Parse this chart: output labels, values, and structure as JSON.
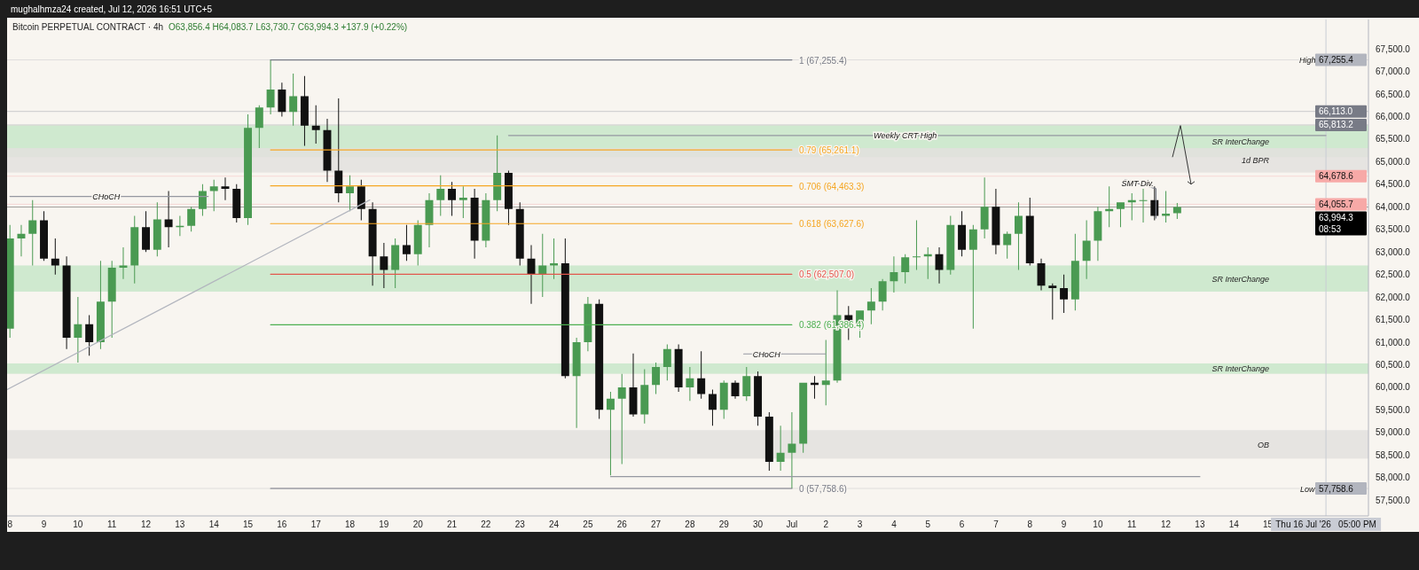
{
  "chart_data": {
    "type": "candlestick",
    "title": "Bitcoin PERPETUAL CONTRACT · 4h",
    "subtitle": "O63,856.4 H64,083.7 L63,730.7 C63,994.3 +137.9 (+0.22%)",
    "annotations": [
      "mughalhmza24 created, Jul 12, 2026 16:51 UTC+5",
      {
        "text": "CHoCH",
        "x": "2026-06-10T20:00",
        "y": 64230
      },
      {
        "text": "CHoCH",
        "x": "2026-06-30T06:00",
        "y": 60740
      },
      {
        "text": "Weekly CRT High",
        "x": "2026-07-04T08:00",
        "y": 65580
      },
      {
        "text": "SMT Div.",
        "x": "2026-07-11T04:00",
        "y": 64520
      },
      {
        "text": "High",
        "x": "2026-07-16T04:00",
        "y": 67255.4
      },
      {
        "text": "Low",
        "x": "2026-07-16T04:00",
        "y": 57758.6
      }
    ],
    "xlim": [
      "2026-06-07T22:00",
      "2026-07-17T23:00"
    ],
    "ylim": [
      57150,
      68150
    ],
    "xticks": [
      {
        "value": "2026-06-08T00:00",
        "label": "8"
      },
      {
        "value": "2026-06-09T00:00",
        "label": "9"
      },
      {
        "value": "2026-06-10T00:00",
        "label": "10"
      },
      {
        "value": "2026-06-11T00:00",
        "label": "11"
      },
      {
        "value": "2026-06-12T00:00",
        "label": "12"
      },
      {
        "value": "2026-06-13T00:00",
        "label": "13"
      },
      {
        "value": "2026-06-14T00:00",
        "label": "14"
      },
      {
        "value": "2026-06-15T00:00",
        "label": "15"
      },
      {
        "value": "2026-06-16T00:00",
        "label": "16"
      },
      {
        "value": "2026-06-17T00:00",
        "label": "17"
      },
      {
        "value": "2026-06-18T00:00",
        "label": "18"
      },
      {
        "value": "2026-06-19T00:00",
        "label": "19"
      },
      {
        "value": "2026-06-20T00:00",
        "label": "20"
      },
      {
        "value": "2026-06-21T00:00",
        "label": "21"
      },
      {
        "value": "2026-06-22T00:00",
        "label": "22"
      },
      {
        "value": "2026-06-23T00:00",
        "label": "23"
      },
      {
        "value": "2026-06-24T00:00",
        "label": "24"
      },
      {
        "value": "2026-06-25T00:00",
        "label": "25"
      },
      {
        "value": "2026-06-26T00:00",
        "label": "26"
      },
      {
        "value": "2026-06-27T00:00",
        "label": "27"
      },
      {
        "value": "2026-06-28T00:00",
        "label": "28"
      },
      {
        "value": "2026-06-29T00:00",
        "label": "29"
      },
      {
        "value": "2026-06-30T00:00",
        "label": "30"
      },
      {
        "value": "2026-07-01T00:00",
        "label": "Jul"
      },
      {
        "value": "2026-07-02T00:00",
        "label": "2"
      },
      {
        "value": "2026-07-03T00:00",
        "label": "3"
      },
      {
        "value": "2026-07-04T00:00",
        "label": "4"
      },
      {
        "value": "2026-07-05T00:00",
        "label": "5"
      },
      {
        "value": "2026-07-06T00:00",
        "label": "6"
      },
      {
        "value": "2026-07-07T00:00",
        "label": "7"
      },
      {
        "value": "2026-07-08T00:00",
        "label": "8"
      },
      {
        "value": "2026-07-09T00:00",
        "label": "9"
      },
      {
        "value": "2026-07-10T00:00",
        "label": "10"
      },
      {
        "value": "2026-07-11T00:00",
        "label": "11"
      },
      {
        "value": "2026-07-12T00:00",
        "label": "12"
      },
      {
        "value": "2026-07-13T00:00",
        "label": "13"
      },
      {
        "value": "2026-07-14T00:00",
        "label": "14"
      },
      {
        "value": "2026-07-15T00:00",
        "label": "15"
      }
    ],
    "yticks": [
      {
        "value": 57500,
        "label": "57,500.0"
      },
      {
        "value": 58000,
        "label": "58,000.0"
      },
      {
        "value": 58500,
        "label": "58,500.0"
      },
      {
        "value": 59000,
        "label": "59,000.0"
      },
      {
        "value": 59500,
        "label": "59,500.0"
      },
      {
        "value": 60000,
        "label": "60,000.0"
      },
      {
        "value": 60500,
        "label": "60,500.0"
      },
      {
        "value": 61000,
        "label": "61,000.0"
      },
      {
        "value": 61500,
        "label": "61,500.0"
      },
      {
        "value": 62000,
        "label": "62,000.0"
      },
      {
        "value": 62500,
        "label": "62,500.0"
      },
      {
        "value": 63000,
        "label": "63,000.0"
      },
      {
        "value": 63500,
        "label": "63,500.0"
      },
      {
        "value": 64000,
        "label": "64,000.0"
      },
      {
        "value": 64500,
        "label": "64,500.0"
      },
      {
        "value": 65000,
        "label": "65,000.0"
      },
      {
        "value": 65500,
        "label": "65,500.0"
      },
      {
        "value": 66000,
        "label": "66,000.0"
      },
      {
        "value": 66500,
        "label": "66,500.0"
      },
      {
        "value": 67000,
        "label": "67,000.0"
      },
      {
        "value": 67500,
        "label": "67,500.0"
      }
    ],
    "bands": [
      {
        "axis": "y",
        "from": 65100,
        "to": 65800,
        "label": "SR InterChange",
        "color": "#c8e6c9"
      },
      {
        "axis": "y",
        "from": 64760,
        "to": 65300,
        "label": "1d BPR",
        "color": "#e3e1de"
      },
      {
        "axis": "y",
        "from": 62120,
        "to": 62700,
        "label": "SR InterChange",
        "color": "#c8e6c9"
      },
      {
        "axis": "y",
        "from": 60300,
        "to": 60530,
        "label": "SR InterChange",
        "color": "#c8e6c9"
      },
      {
        "axis": "y",
        "from": 58420,
        "to": 59050,
        "label": "OB",
        "color": "#e3e1de"
      }
    ],
    "ref_lines": [
      {
        "axis": "y",
        "value": 67255.4,
        "label": "67,255.4",
        "color": "#b2b5be"
      },
      {
        "axis": "y",
        "value": 66113.0,
        "label": "66,113.0",
        "color": "#787b86"
      },
      {
        "axis": "y",
        "value": 65813.2,
        "label": "65,813.2",
        "color": "#787b86"
      },
      {
        "axis": "y",
        "value": 64678.6,
        "label": "64,678.6",
        "color": "#f7a9a7"
      },
      {
        "axis": "y",
        "value": 64055.7,
        "label": "64,055.7",
        "color": "#f7a9a7"
      },
      {
        "axis": "y",
        "value": 63994.3,
        "label": "63,994.3 08:53",
        "color": "#000000"
      },
      {
        "axis": "y",
        "value": 57758.6,
        "label": "57,758.6",
        "color": "#b2b5be"
      },
      {
        "axis": "x",
        "value": "2026-07-16T17:00",
        "label": "Thu 16 Jul '26   05:00 PM",
        "color": "#c9ccd4"
      }
    ],
    "series": [
      {
        "type": "line",
        "name": "1 (67,255.4)",
        "color": "#787b86",
        "x": [
          "2026-06-15T16:00",
          "2026-07-01T00:00"
        ],
        "values": [
          67255.4,
          67255.4
        ]
      },
      {
        "type": "line",
        "name": "0.79 (65,261.1)",
        "color": "#f5a623",
        "x": [
          "2026-06-15T16:00",
          "2026-07-01T00:00"
        ],
        "values": [
          65261.1,
          65261.1
        ]
      },
      {
        "type": "line",
        "name": "0.706 (64,463.3)",
        "color": "#f5a623",
        "x": [
          "2026-06-15T16:00",
          "2026-07-01T00:00"
        ],
        "values": [
          64463.3,
          64463.3
        ]
      },
      {
        "type": "line",
        "name": "0.618 (63,627.6)",
        "color": "#f5a623",
        "x": [
          "2026-06-15T16:00",
          "2026-07-01T00:00"
        ],
        "values": [
          63627.6,
          63627.6
        ]
      },
      {
        "type": "line",
        "name": "0.5 (62,507.0)",
        "color": "#e2574c",
        "x": [
          "2026-06-15T16:00",
          "2026-07-01T00:00"
        ],
        "values": [
          62507.0,
          62507.0
        ]
      },
      {
        "type": "line",
        "name": "0.382 (61,386.4)",
        "color": "#4caf50",
        "x": [
          "2026-06-15T16:00",
          "2026-07-01T00:00"
        ],
        "values": [
          61386.4,
          61386.4
        ]
      },
      {
        "type": "line",
        "name": "0 (57,758.6)",
        "color": "#787b86",
        "x": [
          "2026-06-15T16:00",
          "2026-07-01T00:00"
        ],
        "values": [
          57758.6,
          57758.6
        ]
      },
      {
        "type": "line",
        "color": "#9598a1",
        "x": [
          "2026-06-22T16:00",
          "2026-07-16T17:00"
        ],
        "values": [
          65580,
          65580
        ]
      },
      {
        "type": "line",
        "color": "#9598a1",
        "x": [
          "2026-06-08T00:00",
          "2026-06-13T20:00"
        ],
        "values": [
          64230,
          64230
        ]
      },
      {
        "type": "line",
        "color": "#9598a1",
        "x": [
          "2026-06-29T14:00",
          "2026-07-02T00:00"
        ],
        "values": [
          60740,
          60740
        ]
      },
      {
        "type": "line",
        "color": "#b2b5be",
        "x": [
          "2026-06-07T22:00",
          "2026-06-18T14:00"
        ],
        "values": [
          59950,
          64150
        ]
      },
      {
        "type": "line",
        "color": "#9598a1",
        "x": [
          "2026-06-25T16:00",
          "2026-07-13T00:00"
        ],
        "values": [
          58020,
          58020
        ]
      },
      {
        "type": "line",
        "color": "#787b86",
        "x": [
          "2026-07-10T19:00",
          "2026-07-11T17:00",
          "2026-07-11T17:00"
        ],
        "values": [
          64600,
          64400,
          63750
        ]
      },
      {
        "x": [
          "2026-06-08T00:00",
          "2026-06-08T08:00",
          "2026-06-08T16:00",
          "2026-06-09T00:00",
          "2026-06-09T08:00",
          "2026-06-09T16:00",
          "2026-06-10T00:00",
          "2026-06-10T08:00",
          "2026-06-10T16:00",
          "2026-06-11T00:00",
          "2026-06-11T08:00",
          "2026-06-11T16:00",
          "2026-06-12T00:00",
          "2026-06-12T08:00",
          "2026-06-12T16:00",
          "2026-06-13T00:00",
          "2026-06-13T08:00",
          "2026-06-13T16:00",
          "2026-06-14T00:00",
          "2026-06-14T08:00",
          "2026-06-14T16:00",
          "2026-06-15T00:00",
          "2026-06-15T08:00",
          "2026-06-15T16:00",
          "2026-06-16T00:00",
          "2026-06-16T08:00",
          "2026-06-16T16:00",
          "2026-06-17T00:00",
          "2026-06-17T08:00",
          "2026-06-17T16:00",
          "2026-06-18T00:00",
          "2026-06-18T08:00",
          "2026-06-18T16:00",
          "2026-06-19T00:00",
          "2026-06-19T08:00",
          "2026-06-19T16:00",
          "2026-06-20T00:00",
          "2026-06-20T08:00",
          "2026-06-20T16:00",
          "2026-06-21T00:00",
          "2026-06-21T08:00",
          "2026-06-21T16:00",
          "2026-06-22T00:00",
          "2026-06-22T08:00",
          "2026-06-22T16:00",
          "2026-06-23T00:00",
          "2026-06-23T08:00",
          "2026-06-23T16:00",
          "2026-06-24T00:00",
          "2026-06-24T08:00",
          "2026-06-24T16:00",
          "2026-06-25T00:00",
          "2026-06-25T08:00",
          "2026-06-25T16:00",
          "2026-06-26T00:00",
          "2026-06-26T08:00",
          "2026-06-26T16:00",
          "2026-06-27T00:00",
          "2026-06-27T08:00",
          "2026-06-27T16:00",
          "2026-06-28T00:00",
          "2026-06-28T08:00",
          "2026-06-28T16:00",
          "2026-06-29T00:00",
          "2026-06-29T08:00",
          "2026-06-29T16:00",
          "2026-06-30T00:00",
          "2026-06-30T08:00",
          "2026-06-30T16:00",
          "2026-07-01T00:00",
          "2026-07-01T08:00",
          "2026-07-01T16:00",
          "2026-07-02T00:00",
          "2026-07-02T08:00",
          "2026-07-02T16:00",
          "2026-07-03T00:00",
          "2026-07-03T08:00",
          "2026-07-03T16:00",
          "2026-07-04T00:00",
          "2026-07-04T08:00",
          "2026-07-04T16:00",
          "2026-07-05T00:00",
          "2026-07-05T08:00",
          "2026-07-05T16:00",
          "2026-07-06T00:00",
          "2026-07-06T08:00",
          "2026-07-06T16:00",
          "2026-07-07T00:00",
          "2026-07-07T08:00",
          "2026-07-07T16:00",
          "2026-07-08T00:00",
          "2026-07-08T08:00",
          "2026-07-08T16:00",
          "2026-07-09T00:00",
          "2026-07-09T08:00",
          "2026-07-09T16:00",
          "2026-07-10T00:00",
          "2026-07-10T08:00",
          "2026-07-10T16:00",
          "2026-07-11T00:00",
          "2026-07-11T08:00",
          "2026-07-11T16:00",
          "2026-07-12T00:00",
          "2026-07-12T08:00"
        ],
        "ohlc": [
          [
            61300,
            63600,
            61100,
            63300
          ],
          [
            63300,
            63600,
            62900,
            63400
          ],
          [
            63400,
            64150,
            62700,
            63700
          ],
          [
            63700,
            63900,
            62800,
            62850
          ],
          [
            62850,
            63300,
            62500,
            62700
          ],
          [
            62700,
            62900,
            60850,
            61100
          ],
          [
            61100,
            62000,
            60550,
            61400
          ],
          [
            61400,
            61600,
            60700,
            61000
          ],
          [
            61000,
            62800,
            60850,
            61900
          ],
          [
            61900,
            62800,
            61100,
            62650
          ],
          [
            62650,
            63100,
            62400,
            62700
          ],
          [
            62700,
            63800,
            62300,
            63550
          ],
          [
            63550,
            63900,
            63000,
            63050
          ],
          [
            63050,
            64100,
            62900,
            63720
          ],
          [
            63720,
            64350,
            63100,
            63550
          ],
          [
            63550,
            63800,
            63350,
            63580
          ],
          [
            63580,
            64000,
            63450,
            63950
          ],
          [
            63950,
            64500,
            63800,
            64350
          ],
          [
            64350,
            64600,
            63900,
            64450
          ],
          [
            64450,
            64650,
            64150,
            64400
          ],
          [
            64400,
            64500,
            63650,
            63750
          ],
          [
            63750,
            66050,
            63600,
            65750
          ],
          [
            65750,
            66250,
            65300,
            66200
          ],
          [
            66200,
            67255.4,
            66050,
            66600
          ],
          [
            66600,
            66750,
            66000,
            66100
          ],
          [
            66100,
            66950,
            65800,
            66450
          ],
          [
            66450,
            66900,
            65350,
            65800
          ],
          [
            65800,
            66250,
            65400,
            65700
          ],
          [
            65700,
            65950,
            64550,
            64800
          ],
          [
            64800,
            66400,
            64100,
            64300
          ],
          [
            64300,
            64700,
            63900,
            64450
          ],
          [
            64450,
            64600,
            63700,
            63950
          ],
          [
            63950,
            64100,
            62250,
            62900
          ],
          [
            62900,
            63200,
            62200,
            62600
          ],
          [
            62600,
            63300,
            62200,
            63150
          ],
          [
            63150,
            63600,
            62800,
            62950
          ],
          [
            62950,
            63700,
            62700,
            63600
          ],
          [
            63600,
            64300,
            63100,
            64150
          ],
          [
            64150,
            64700,
            63800,
            64400
          ],
          [
            64400,
            64550,
            63800,
            64150
          ],
          [
            64150,
            64450,
            63750,
            64200
          ],
          [
            64200,
            64400,
            62850,
            63250
          ],
          [
            63250,
            64300,
            63100,
            64150
          ],
          [
            64150,
            65580,
            63900,
            64750
          ],
          [
            64750,
            64800,
            63600,
            63950
          ],
          [
            63950,
            64100,
            62700,
            62850
          ],
          [
            62850,
            63150,
            61850,
            62500
          ],
          [
            62500,
            63400,
            62000,
            62700
          ],
          [
            62700,
            63300,
            62400,
            62750
          ],
          [
            62750,
            63300,
            60200,
            60250
          ],
          [
            60250,
            61100,
            59100,
            61000
          ],
          [
            61000,
            62000,
            60800,
            61850
          ],
          [
            61850,
            61950,
            59300,
            59500
          ],
          [
            59500,
            59900,
            58050,
            59750
          ],
          [
            59750,
            60300,
            58300,
            60000
          ],
          [
            60000,
            60750,
            59350,
            59400
          ],
          [
            59400,
            60400,
            59200,
            60050
          ],
          [
            60050,
            60550,
            59850,
            60450
          ],
          [
            60450,
            60950,
            60150,
            60850
          ],
          [
            60850,
            60950,
            59900,
            60000
          ],
          [
            60000,
            60450,
            59700,
            60200
          ],
          [
            60200,
            60800,
            59750,
            59850
          ],
          [
            59850,
            59950,
            59150,
            59500
          ],
          [
            59500,
            60150,
            59300,
            60100
          ],
          [
            60100,
            60150,
            59750,
            59800
          ],
          [
            59800,
            60450,
            59700,
            60250
          ],
          [
            60250,
            60350,
            59150,
            59350
          ],
          [
            59350,
            59450,
            58150,
            58350
          ],
          [
            58350,
            59150,
            58150,
            58550
          ],
          [
            58550,
            59450,
            57758.6,
            58750
          ],
          [
            58750,
            60100,
            58550,
            60100
          ],
          [
            60100,
            60250,
            59750,
            60050
          ],
          [
            60050,
            61050,
            59600,
            60150
          ],
          [
            60150,
            62150,
            60100,
            61600
          ],
          [
            61600,
            61800,
            61050,
            61400
          ],
          [
            61400,
            61700,
            61100,
            61700
          ],
          [
            61700,
            62200,
            61400,
            61900
          ],
          [
            61900,
            62400,
            61700,
            62350
          ],
          [
            62350,
            62900,
            62100,
            62550
          ],
          [
            62550,
            62950,
            62300,
            62880
          ],
          [
            62880,
            63700,
            62600,
            62900
          ],
          [
            62900,
            63100,
            62400,
            62950
          ],
          [
            62950,
            63100,
            62300,
            62600
          ],
          [
            62600,
            63800,
            62500,
            63600
          ],
          [
            63600,
            63900,
            62900,
            63050
          ],
          [
            63050,
            63600,
            61300,
            63500
          ],
          [
            63500,
            64650,
            63300,
            64000
          ],
          [
            64000,
            64400,
            62950,
            63150
          ],
          [
            63150,
            63450,
            62850,
            63400
          ],
          [
            63400,
            64100,
            62600,
            63800
          ],
          [
            63800,
            64200,
            62700,
            62750
          ],
          [
            62750,
            62850,
            62150,
            62250
          ],
          [
            62250,
            62300,
            61500,
            62200
          ],
          [
            62200,
            62500,
            61650,
            61950
          ],
          [
            61950,
            63400,
            61700,
            62800
          ],
          [
            62800,
            63700,
            62400,
            63250
          ],
          [
            63250,
            64000,
            62800,
            63900
          ],
          [
            63900,
            64450,
            63550,
            63950
          ],
          [
            63950,
            64100,
            63550,
            64100
          ],
          [
            64100,
            64300,
            63700,
            64150
          ],
          [
            64150,
            64400,
            63650,
            64150
          ],
          [
            64150,
            64450,
            63700,
            63800
          ],
          [
            63800,
            64350,
            63650,
            63850
          ],
          [
            63856.4,
            64083.7,
            63730.7,
            63994.3
          ]
        ]
      }
    ]
  }
}
